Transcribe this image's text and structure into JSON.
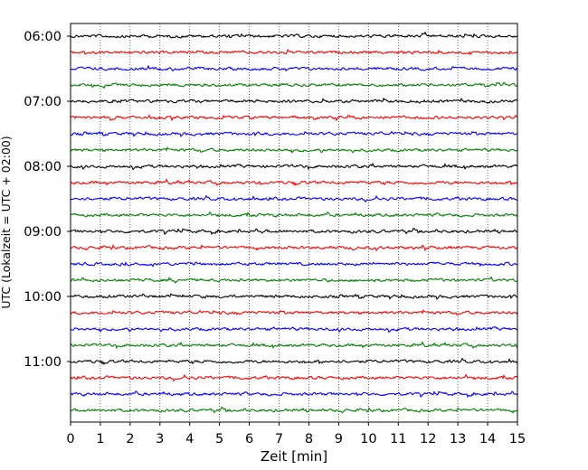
{
  "chart_data": {
    "type": "line",
    "subtype": "seismic helicorder",
    "xlabel": "Zeit  [min]",
    "ylabel": "UTC (Lokalzeit = UTC + 02:00)",
    "xlim": [
      0,
      15
    ],
    "x_ticks": [
      "0",
      "1",
      "2",
      "3",
      "4",
      "5",
      "6",
      "7",
      "8",
      "9",
      "10",
      "11",
      "12",
      "13",
      "14",
      "15"
    ],
    "y_ticks": [
      "06:00",
      "07:00",
      "08:00",
      "09:00",
      "10:00",
      "11:00"
    ],
    "grid": "vertical dotted lines at each minute",
    "trace_colors": [
      "#000000",
      "#ff0000",
      "#0000ff",
      "#008000"
    ],
    "traces": [
      {
        "start": "06:00"
      },
      {
        "start": "06:15"
      },
      {
        "start": "06:30"
      },
      {
        "start": "06:45"
      },
      {
        "start": "07:00"
      },
      {
        "start": "07:15"
      },
      {
        "start": "07:30"
      },
      {
        "start": "07:45"
      },
      {
        "start": "08:00"
      },
      {
        "start": "08:15"
      },
      {
        "start": "08:30"
      },
      {
        "start": "08:45"
      },
      {
        "start": "09:00"
      },
      {
        "start": "09:15"
      },
      {
        "start": "09:30"
      },
      {
        "start": "09:45"
      },
      {
        "start": "10:00"
      },
      {
        "start": "10:15"
      },
      {
        "start": "10:30"
      },
      {
        "start": "10:45"
      },
      {
        "start": "11:00"
      },
      {
        "start": "11:15"
      },
      {
        "start": "11:30"
      },
      {
        "start": "11:45"
      }
    ]
  }
}
